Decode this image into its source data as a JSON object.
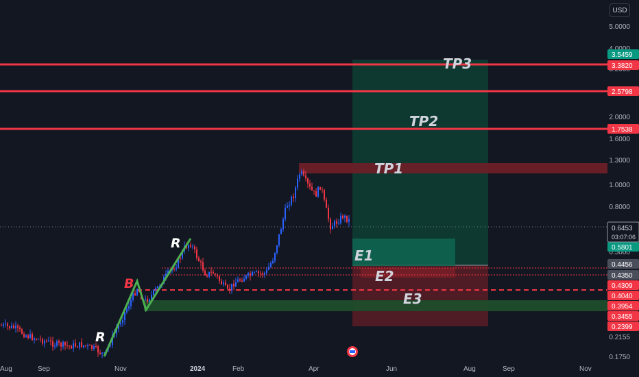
{
  "currency_button": "USD",
  "price_scale": {
    "labels": [
      "5.0000",
      "4.0000",
      "3.2000",
      "2.0000",
      "1.6000",
      "1.3000",
      "1.0000",
      "0.8000",
      "0.5000",
      "0.2155",
      "0.1750"
    ]
  },
  "current": {
    "price": "0.6453",
    "countdown": "03:07:06"
  },
  "time_axis": {
    "labels": [
      "Aug",
      "Sep",
      "Nov",
      "2024",
      "Feb",
      "Apr",
      "Jun",
      "Aug",
      "Sep",
      "Nov"
    ]
  },
  "horizontal_levels": [
    {
      "price_label": "3.3820",
      "color": "#f23645"
    },
    {
      "price_label": "2.5798",
      "color": "#f23645"
    },
    {
      "price_label": "1.7538",
      "color": "#f23645"
    },
    {
      "price_label": "0.4309",
      "color": "#f23645",
      "style": "dashed"
    }
  ],
  "price_tags": [
    {
      "text": "3.5459",
      "bg": "#089981"
    },
    {
      "text": "3.3820",
      "bg": "#f23645"
    },
    {
      "text": "2.5798",
      "bg": "#f23645"
    },
    {
      "text": "1.7538",
      "bg": "#f23645"
    },
    {
      "text": "0.5801",
      "bg": "#089981"
    },
    {
      "text": "0.4456",
      "bg": "#4a4e5a"
    },
    {
      "text": "0.4350",
      "bg": "#4a4e5a"
    },
    {
      "text": "0.4309",
      "bg": "#f23645"
    },
    {
      "text": "0.4040",
      "bg": "#f23645"
    },
    {
      "text": "0.3954",
      "bg": "#f23645"
    },
    {
      "text": "0.3455",
      "bg": "#f23645"
    },
    {
      "text": "0.2399",
      "bg": "#f23645"
    }
  ],
  "annotations": {
    "targets": [
      "TP1",
      "TP2",
      "TP3"
    ],
    "entries": [
      "E1",
      "E2",
      "E3"
    ],
    "waves": [
      "R",
      "B",
      "R"
    ]
  },
  "colors": {
    "background": "#131722",
    "up": "#2962ff",
    "down": "#f23645",
    "wave": "#4caf50",
    "profit_zone": "#0b5c48",
    "loss_zone": "#7a1f28"
  }
}
